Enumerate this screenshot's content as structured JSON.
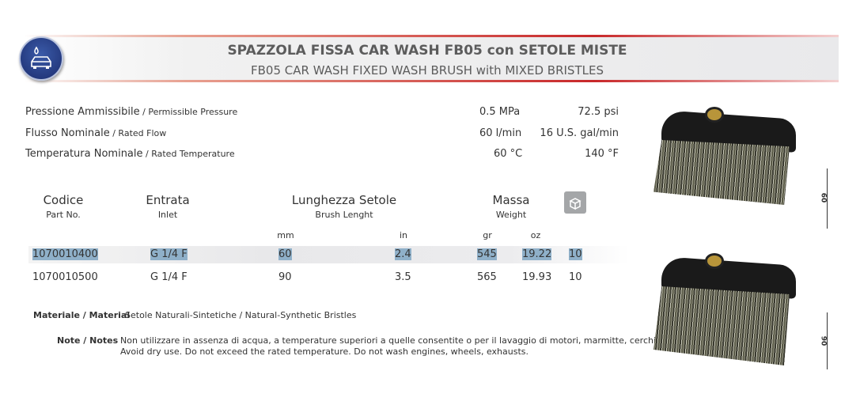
{
  "header": {
    "title": "SPAZZOLA FISSA CAR WASH FB05 con SETOLE MISTE",
    "subtitle": "FB05 CAR WASH FIXED WASH BRUSH with MIXED BRISTLES",
    "logo_icon": "car-wash-icon"
  },
  "specs": [
    {
      "label_it": "Pressione Ammissibile",
      "label_en": " / Permissible Pressure",
      "v1": "0.5 MPa",
      "v2": "72.5 psi"
    },
    {
      "label_it": "Flusso Nominale",
      "label_en": " / Rated Flow",
      "v1": "60 l/min",
      "v2": "16 U.S. gal/min"
    },
    {
      "label_it": "Temperatura Nominale",
      "label_en": " / Rated Temperature",
      "v1": "60 °C",
      "v2": "140  °F"
    }
  ],
  "table": {
    "headers": [
      {
        "it": "Codice",
        "en": "Part No."
      },
      {
        "it": "Entrata",
        "en": "Inlet"
      },
      {
        "it": "Lunghezza Setole",
        "en": "Brush Lenght"
      },
      {
        "it": "Massa",
        "en": "Weight"
      }
    ],
    "units": [
      "mm",
      "in",
      "gr",
      "oz"
    ],
    "package_icon": "box-icon",
    "rows": [
      {
        "code": "1070010400",
        "inlet": "G 1/4 F",
        "mm": "60",
        "in": "2.4",
        "gr": "545",
        "oz": "19.22",
        "qty": "10"
      },
      {
        "code": "1070010500",
        "inlet": "G 1/4 F",
        "mm": "90",
        "in": "3.5",
        "gr": "565",
        "oz": "19.93",
        "qty": "10"
      }
    ]
  },
  "material": {
    "label": "Materiale / Material",
    "value": "Setole Naturali-Sintetiche / Natural-Synthetic Bristles"
  },
  "notes": {
    "label": "Note / Notes",
    "line1": "Non utilizzare in assenza di acqua, a temperature superiori a quelle consentite o per il lavaggio di motori, marmitte, cerchi.",
    "line2": "Avoid dry use. Do not exceed the rated temperature. Do not wash engines, wheels, exhausts."
  },
  "images": [
    {
      "dimension": "60"
    },
    {
      "dimension": "90"
    }
  ]
}
